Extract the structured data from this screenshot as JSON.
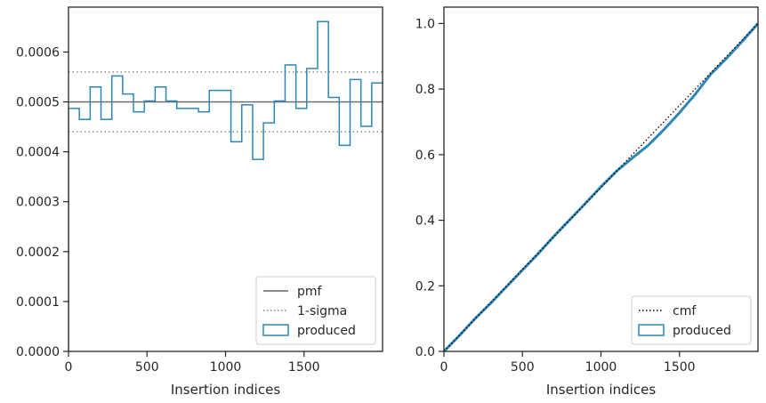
{
  "colors": {
    "histogram": "#2e86b7",
    "pmf": "#666666",
    "sigma": "#808080",
    "cmf": "#000000",
    "axes": "#262626"
  },
  "chart_data": [
    {
      "type": "histogram-step",
      "xlabel": "Insertion indices",
      "ylabel": "",
      "xlim": [
        0,
        2000
      ],
      "ylim": [
        0,
        0.00069
      ],
      "x_ticks": [
        0,
        500,
        1000,
        1500
      ],
      "x_tick_labels": [
        "0",
        "500",
        "1000",
        "1500"
      ],
      "y_ticks": [
        0,
        0.0001,
        0.0002,
        0.0003,
        0.0004,
        0.0005,
        0.0006
      ],
      "y_tick_labels": [
        "0.0000",
        "0.0001",
        "0.0002",
        "0.0003",
        "0.0004",
        "0.0005",
        "0.0006"
      ],
      "bin_width": 68.97,
      "values": [
        0.000487,
        0.000465,
        0.00053,
        0.000465,
        0.000552,
        0.000516,
        0.00048,
        0.000502,
        0.00053,
        0.000502,
        0.000487,
        0.000487,
        0.00048,
        0.000523,
        0.000523,
        0.00042,
        0.000494,
        0.000385,
        0.000458,
        0.000502,
        0.000574,
        0.000487,
        0.000567,
        0.000661,
        0.000509,
        0.000413,
        0.000545,
        0.000451,
        0.000538
      ],
      "pmf": 0.0005,
      "sigma_lines": [
        0.00044,
        0.00056
      ],
      "legend": {
        "placement": "lower-right",
        "entries": [
          {
            "label": "pmf",
            "style": "solid-line"
          },
          {
            "label": "1-sigma",
            "style": "dotted-line"
          },
          {
            "label": "produced",
            "style": "box"
          }
        ]
      }
    },
    {
      "type": "cumulative-step",
      "xlabel": "Insertion indices",
      "ylabel": "",
      "xlim": [
        0,
        2000
      ],
      "ylim": [
        0,
        1.05
      ],
      "x_ticks": [
        0,
        500,
        1000,
        1500
      ],
      "x_tick_labels": [
        "0",
        "500",
        "1000",
        "1500"
      ],
      "y_ticks": [
        0,
        0.2,
        0.4,
        0.6,
        0.8,
        1.0
      ],
      "y_tick_labels": [
        "0.0",
        "0.2",
        "0.4",
        "0.6",
        "0.8",
        "1.0"
      ],
      "x": [
        0,
        100,
        200,
        300,
        400,
        500,
        600,
        700,
        800,
        900,
        1000,
        1100,
        1200,
        1300,
        1400,
        1500,
        1600,
        1700,
        1800,
        1900,
        2000
      ],
      "cmf": [
        0,
        0.05,
        0.1,
        0.15,
        0.2,
        0.25,
        0.3,
        0.35,
        0.4,
        0.45,
        0.5,
        0.55,
        0.6,
        0.65,
        0.7,
        0.75,
        0.8,
        0.85,
        0.9,
        0.95,
        1.0
      ],
      "produced": [
        0,
        0.049,
        0.101,
        0.148,
        0.198,
        0.248,
        0.298,
        0.351,
        0.401,
        0.451,
        0.502,
        0.55,
        0.59,
        0.628,
        0.676,
        0.728,
        0.784,
        0.846,
        0.894,
        0.946,
        1.0
      ],
      "legend": {
        "placement": "lower-right",
        "entries": [
          {
            "label": "cmf",
            "style": "dotted-line"
          },
          {
            "label": "produced",
            "style": "box"
          }
        ]
      }
    }
  ]
}
